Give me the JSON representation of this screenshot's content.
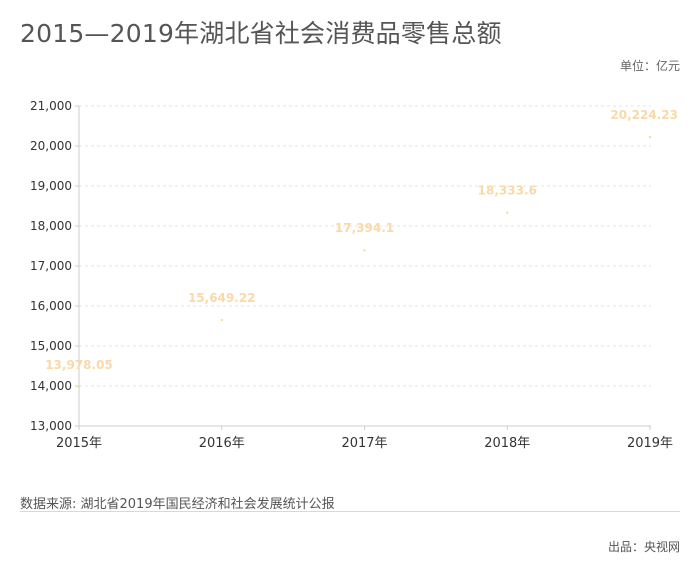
{
  "title": "2015—2019年湖北省社会消费品零售总额",
  "unit_label": "单位：亿元",
  "source_label": "数据来源: 湖北省2019年国民经济和社会发展统计公报",
  "producer_label": "出品：央视网",
  "colors": {
    "label": "#f9d9a8",
    "point": "#f9d9a8",
    "grid": "#e6e6e6",
    "axis": "#cccccc",
    "tick_text": "#333333"
  },
  "chart_data": {
    "type": "scatter",
    "title": "2015—2019年湖北省社会消费品零售总额",
    "x": [
      "2015年",
      "2016年",
      "2017年",
      "2018年",
      "2019年"
    ],
    "values": [
      13978.05,
      15649.22,
      17394.1,
      18333.6,
      20224.23
    ],
    "value_labels": [
      "13,978.05",
      "15,649.22",
      "17,394.1",
      "18,333.6",
      "20,224.23"
    ],
    "ylim": [
      13000,
      21000
    ],
    "yticks": [
      13000,
      14000,
      15000,
      16000,
      17000,
      18000,
      19000,
      20000,
      21000
    ],
    "ytick_labels": [
      "13,000",
      "14,000",
      "15,000",
      "16,000",
      "17,000",
      "18,000",
      "19,000",
      "20,000",
      "21,000"
    ],
    "grid": true,
    "legend": "none"
  }
}
